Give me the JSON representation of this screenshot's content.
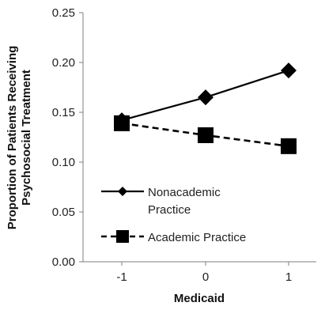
{
  "chart_data": {
    "type": "line",
    "title": "",
    "xlabel": "Medicaid",
    "ylabel_lines": [
      "Proportion of Patients Receiving",
      "Psychosocial Treatment"
    ],
    "x": [
      -1,
      0,
      1
    ],
    "x_tick_labels": [
      "-1",
      "0",
      "1"
    ],
    "ylim": [
      0,
      0.25
    ],
    "y_ticks": [
      0.0,
      0.05,
      0.1,
      0.15,
      0.2,
      0.25
    ],
    "y_tick_labels": [
      "0.00",
      "0.05",
      "0.10",
      "0.15",
      "0.20",
      "0.25"
    ],
    "grid": false,
    "legend_position": "bottom-left",
    "series": [
      {
        "name_lines": [
          "Nonacademic",
          "Practice"
        ],
        "values": [
          0.142,
          0.165,
          0.192
        ],
        "line_style": "solid",
        "marker": "diamond",
        "color": "#000000"
      },
      {
        "name_lines": [
          "Academic Practice"
        ],
        "values": [
          0.139,
          0.127,
          0.116
        ],
        "line_style": "dashed",
        "marker": "square",
        "color": "#000000"
      }
    ]
  }
}
